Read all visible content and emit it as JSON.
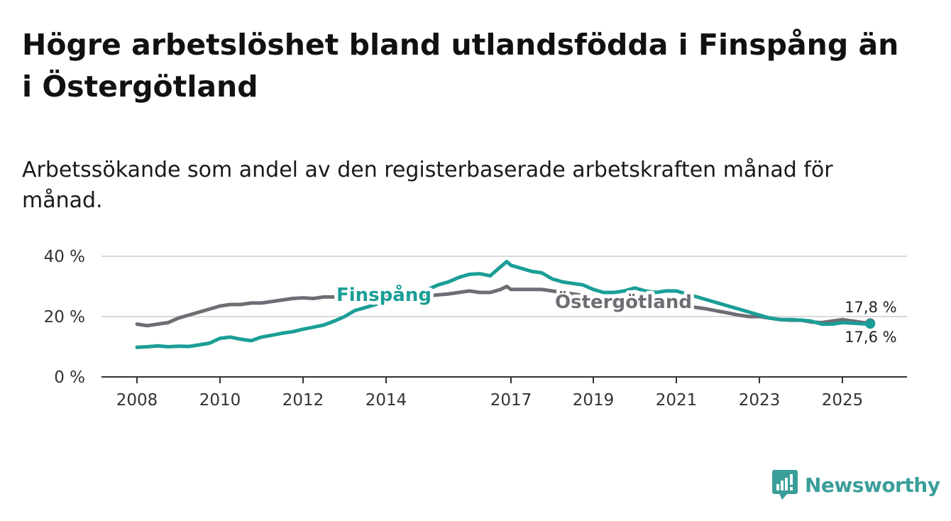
{
  "title": "Högre arbetslöshet bland utlandsfödda i Finspång än i Östergötland",
  "subtitle": "Arbetssökande som andel av den registerbaserade arbetskraften månad för månad.",
  "brand": {
    "name": "Newsworthy",
    "color": "#3a9e9a"
  },
  "chart_data": {
    "type": "line",
    "xlabel": "",
    "ylabel": "",
    "xlim": [
      2007.75,
      2026.5
    ],
    "ylim": [
      0,
      40
    ],
    "y_ticks": [
      {
        "value": 0,
        "label": "0 %"
      },
      {
        "value": 20,
        "label": "20 %"
      },
      {
        "value": 40,
        "label": "40 %"
      }
    ],
    "x_ticks": [
      {
        "value": 2008,
        "label": "2008"
      },
      {
        "value": 2010,
        "label": "2010"
      },
      {
        "value": 2012,
        "label": "2012"
      },
      {
        "value": 2014,
        "label": "2014"
      },
      {
        "value": 2017,
        "label": "2017"
      },
      {
        "value": 2019,
        "label": "2019"
      },
      {
        "value": 2021,
        "label": "2021"
      },
      {
        "value": 2023,
        "label": "2023"
      },
      {
        "value": 2025,
        "label": "2025"
      }
    ],
    "grid": true,
    "series": [
      {
        "name": "Finspång",
        "color": "#1a9e96",
        "end_value_label": "17,6 %",
        "points": [
          [
            2008.0,
            9.8
          ],
          [
            2008.25,
            10.0
          ],
          [
            2008.5,
            10.3
          ],
          [
            2008.75,
            10.0
          ],
          [
            2009.0,
            10.2
          ],
          [
            2009.25,
            10.1
          ],
          [
            2009.5,
            10.6
          ],
          [
            2009.75,
            11.2
          ],
          [
            2010.0,
            12.8
          ],
          [
            2010.25,
            13.2
          ],
          [
            2010.5,
            12.5
          ],
          [
            2010.75,
            12.0
          ],
          [
            2011.0,
            13.2
          ],
          [
            2011.25,
            13.8
          ],
          [
            2011.5,
            14.5
          ],
          [
            2011.75,
            15.0
          ],
          [
            2012.0,
            15.8
          ],
          [
            2012.25,
            16.5
          ],
          [
            2012.5,
            17.2
          ],
          [
            2012.75,
            18.5
          ],
          [
            2013.0,
            20.0
          ],
          [
            2013.25,
            22.0
          ],
          [
            2013.5,
            23.0
          ],
          [
            2013.75,
            24.0
          ],
          [
            2014.0,
            25.0
          ],
          [
            2014.25,
            26.0
          ],
          [
            2014.5,
            27.0
          ],
          [
            2014.75,
            28.0
          ],
          [
            2015.0,
            29.0
          ],
          [
            2015.25,
            30.5
          ],
          [
            2015.5,
            31.5
          ],
          [
            2015.75,
            33.0
          ],
          [
            2016.0,
            34.0
          ],
          [
            2016.25,
            34.2
          ],
          [
            2016.5,
            33.5
          ],
          [
            2016.75,
            36.5
          ],
          [
            2016.9,
            38.2
          ],
          [
            2017.0,
            37.0
          ],
          [
            2017.25,
            36.0
          ],
          [
            2017.5,
            35.0
          ],
          [
            2017.75,
            34.5
          ],
          [
            2018.0,
            32.5
          ],
          [
            2018.25,
            31.5
          ],
          [
            2018.5,
            31.0
          ],
          [
            2018.75,
            30.5
          ],
          [
            2019.0,
            29.0
          ],
          [
            2019.25,
            28.0
          ],
          [
            2019.5,
            28.0
          ],
          [
            2019.75,
            28.5
          ],
          [
            2020.0,
            29.5
          ],
          [
            2020.25,
            28.5
          ],
          [
            2020.5,
            28.0
          ],
          [
            2020.75,
            28.5
          ],
          [
            2021.0,
            28.5
          ],
          [
            2021.25,
            27.5
          ],
          [
            2021.5,
            26.5
          ],
          [
            2021.75,
            25.5
          ],
          [
            2022.0,
            24.5
          ],
          [
            2022.25,
            23.5
          ],
          [
            2022.5,
            22.5
          ],
          [
            2022.75,
            21.5
          ],
          [
            2023.0,
            20.5
          ],
          [
            2023.25,
            19.5
          ],
          [
            2023.5,
            19.0
          ],
          [
            2023.75,
            19.0
          ],
          [
            2024.0,
            18.8
          ],
          [
            2024.25,
            18.5
          ],
          [
            2024.5,
            17.5
          ],
          [
            2024.75,
            17.5
          ],
          [
            2025.0,
            18.0
          ],
          [
            2025.25,
            17.8
          ],
          [
            2025.5,
            17.6
          ],
          [
            2025.67,
            17.6
          ]
        ]
      },
      {
        "name": "Östergötland",
        "color": "#6e6d74",
        "end_value_label": "17,8 %",
        "points": [
          [
            2008.0,
            17.5
          ],
          [
            2008.25,
            17.0
          ],
          [
            2008.5,
            17.5
          ],
          [
            2008.75,
            18.0
          ],
          [
            2009.0,
            19.5
          ],
          [
            2009.25,
            20.5
          ],
          [
            2009.5,
            21.5
          ],
          [
            2009.75,
            22.5
          ],
          [
            2010.0,
            23.5
          ],
          [
            2010.25,
            24.0
          ],
          [
            2010.5,
            24.0
          ],
          [
            2010.75,
            24.5
          ],
          [
            2011.0,
            24.5
          ],
          [
            2011.25,
            25.0
          ],
          [
            2011.5,
            25.5
          ],
          [
            2011.75,
            26.0
          ],
          [
            2012.0,
            26.2
          ],
          [
            2012.25,
            26.0
          ],
          [
            2012.5,
            26.5
          ],
          [
            2012.75,
            26.5
          ],
          [
            2013.0,
            26.5
          ],
          [
            2013.5,
            26.5
          ],
          [
            2014.0,
            26.5
          ],
          [
            2014.5,
            26.5
          ],
          [
            2015.0,
            26.8
          ],
          [
            2015.25,
            27.2
          ],
          [
            2015.5,
            27.5
          ],
          [
            2015.75,
            28.0
          ],
          [
            2016.0,
            28.5
          ],
          [
            2016.25,
            28.0
          ],
          [
            2016.5,
            28.0
          ],
          [
            2016.75,
            29.0
          ],
          [
            2016.9,
            30.0
          ],
          [
            2017.0,
            29.0
          ],
          [
            2017.25,
            29.0
          ],
          [
            2017.5,
            29.0
          ],
          [
            2017.75,
            29.0
          ],
          [
            2018.0,
            28.5
          ],
          [
            2018.5,
            27.5
          ],
          [
            2019.0,
            26.5
          ],
          [
            2019.5,
            26.0
          ],
          [
            2020.0,
            25.0
          ],
          [
            2020.5,
            24.5
          ],
          [
            2021.0,
            24.0
          ],
          [
            2021.25,
            23.5
          ],
          [
            2021.5,
            23.0
          ],
          [
            2021.75,
            22.5
          ],
          [
            2022.0,
            21.8
          ],
          [
            2022.25,
            21.2
          ],
          [
            2022.5,
            20.5
          ],
          [
            2022.75,
            20.0
          ],
          [
            2023.0,
            20.0
          ],
          [
            2023.25,
            19.5
          ],
          [
            2023.5,
            19.0
          ],
          [
            2023.75,
            18.8
          ],
          [
            2024.0,
            18.8
          ],
          [
            2024.25,
            18.2
          ],
          [
            2024.5,
            18.0
          ],
          [
            2024.75,
            18.5
          ],
          [
            2025.0,
            19.0
          ],
          [
            2025.25,
            18.5
          ],
          [
            2025.5,
            18.0
          ],
          [
            2025.67,
            17.8
          ]
        ]
      }
    ]
  }
}
